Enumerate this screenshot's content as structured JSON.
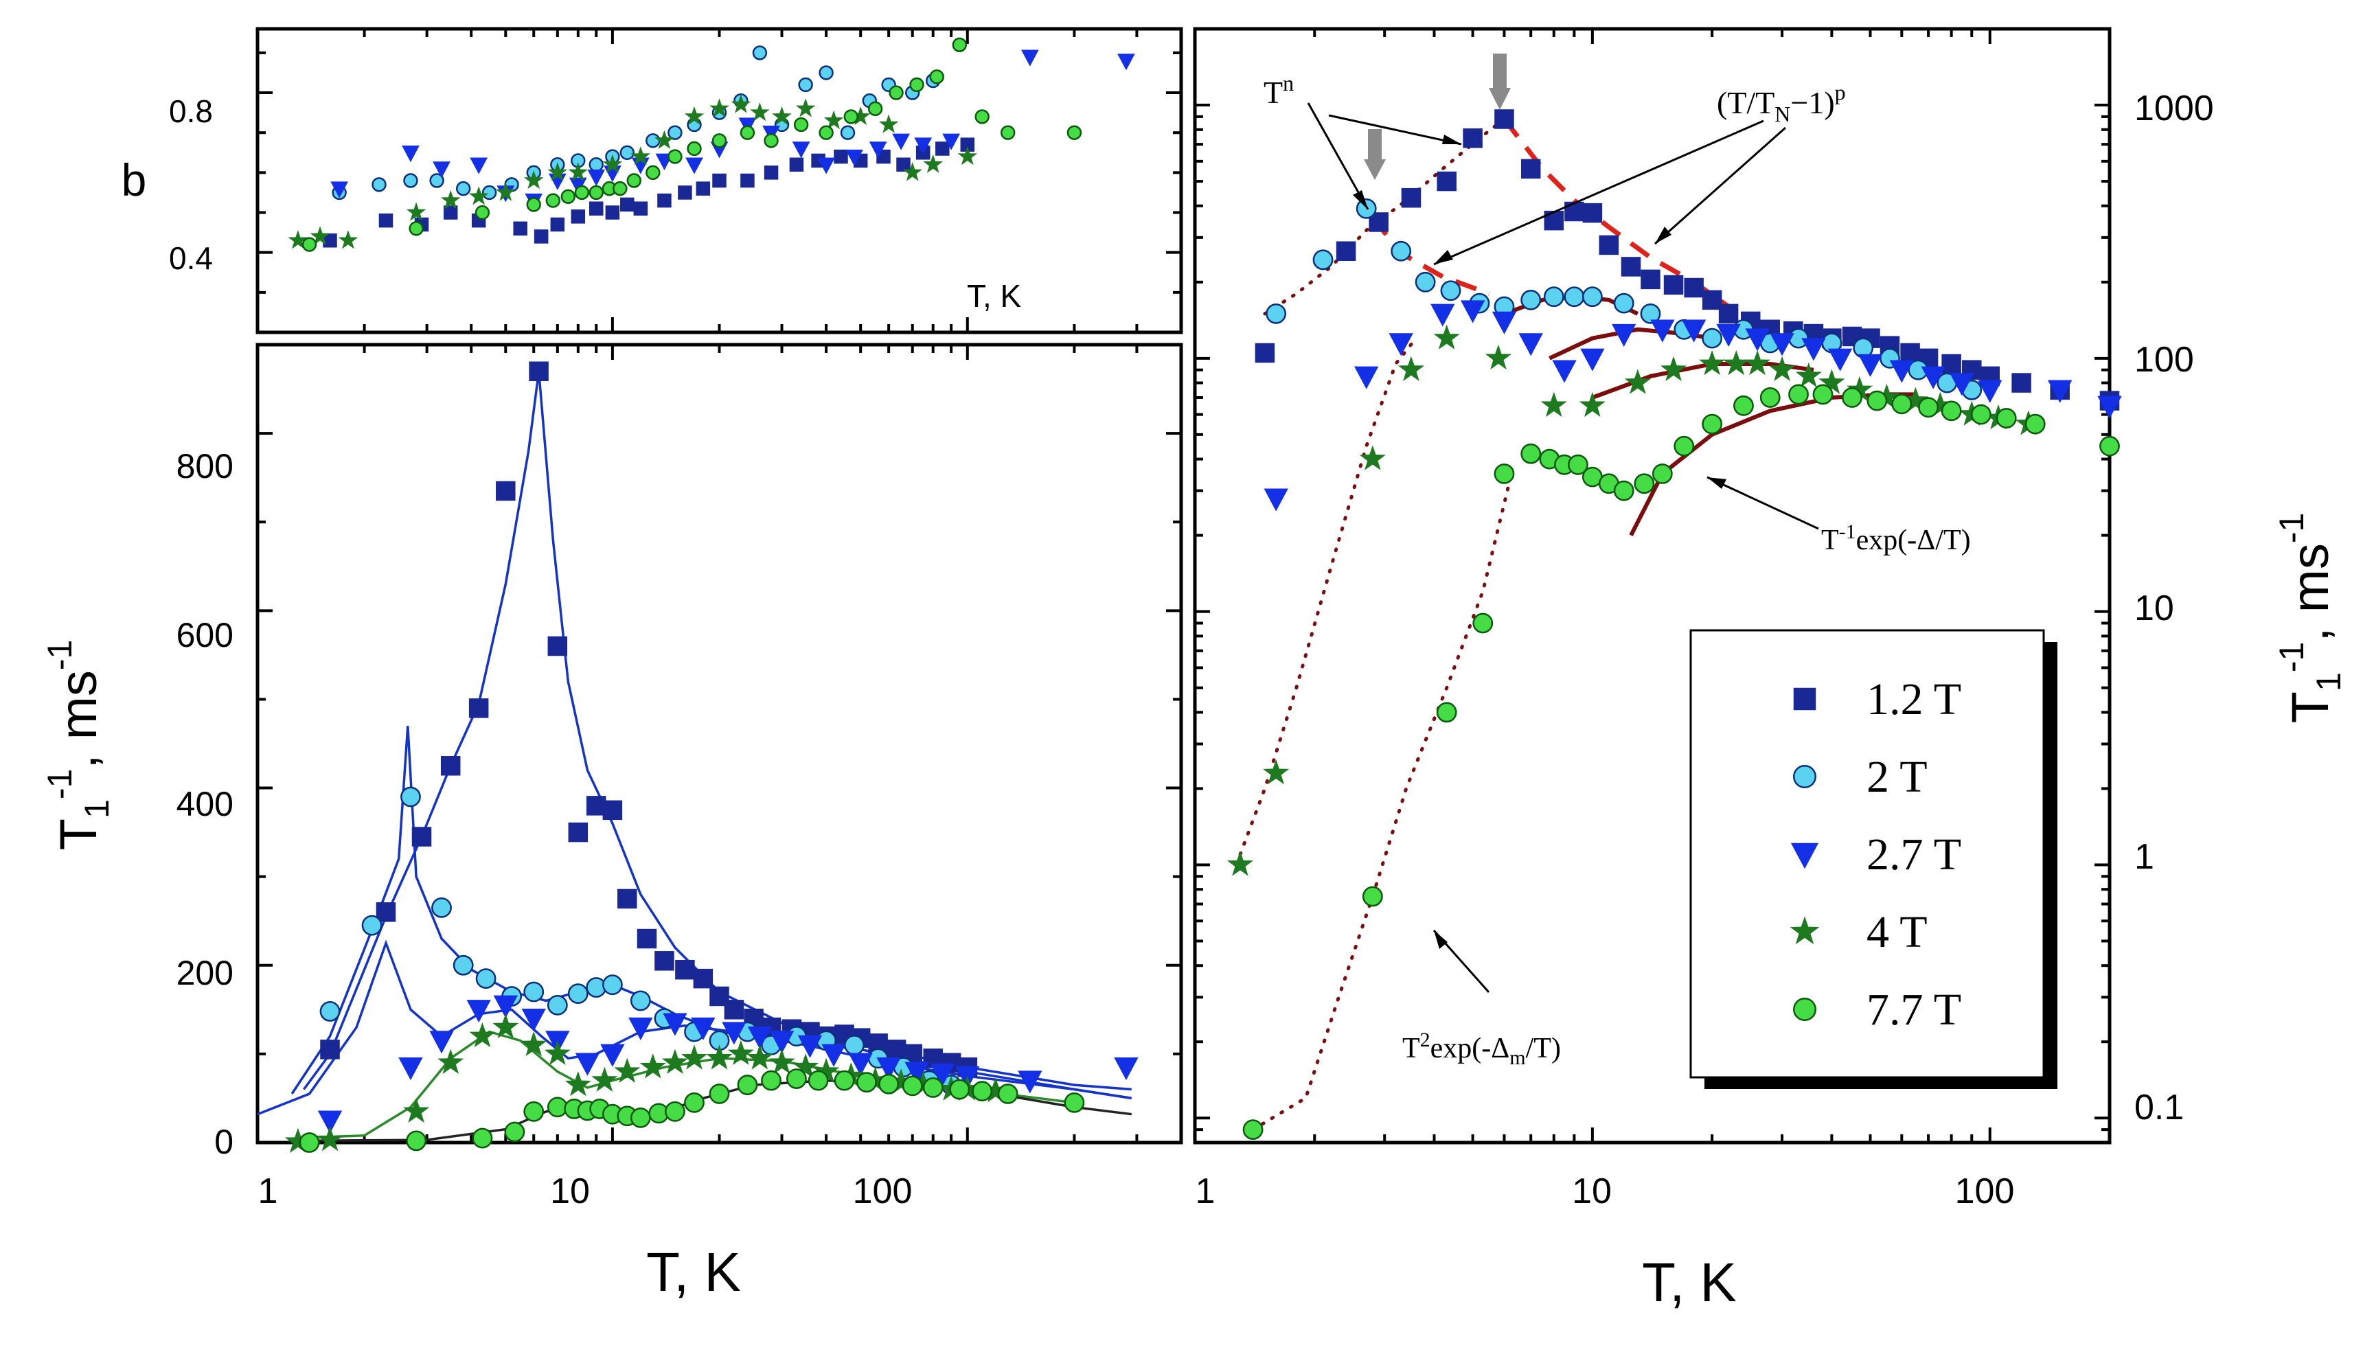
{
  "chart_data": [
    {
      "id": "b_panel",
      "type": "scatter",
      "xscale": "log",
      "xlim": [
        1,
        400
      ],
      "ylim": [
        0.2,
        0.96
      ],
      "ylabel": "b",
      "inner_xlabel": "T, K",
      "yticks": [
        "0.4",
        "0.8"
      ],
      "series": [
        {
          "name": "1.2 T",
          "marker": "square",
          "x": [
            1.6,
            2.3,
            2.9,
            3.5,
            4.2,
            5.5,
            6.3,
            7,
            8,
            9,
            10,
            11,
            12,
            14,
            16,
            18,
            20,
            24,
            28,
            33,
            38,
            44,
            50,
            58,
            66,
            75,
            85,
            100
          ],
          "y": [
            0.43,
            0.48,
            0.47,
            0.5,
            0.48,
            0.46,
            0.44,
            0.47,
            0.49,
            0.51,
            0.5,
            0.52,
            0.51,
            0.53,
            0.55,
            0.56,
            0.58,
            0.58,
            0.6,
            0.62,
            0.63,
            0.64,
            0.63,
            0.64,
            0.62,
            0.65,
            0.66,
            0.67
          ]
        },
        {
          "name": "2 T",
          "marker": "circle",
          "x": [
            1.7,
            2.2,
            2.7,
            3.2,
            3.8,
            4.5,
            5.2,
            6,
            7,
            8,
            9,
            10,
            11,
            13,
            15,
            17,
            20,
            23,
            26,
            30,
            35,
            40,
            46,
            53,
            60,
            70,
            80
          ],
          "y": [
            0.55,
            0.57,
            0.58,
            0.58,
            0.56,
            0.55,
            0.57,
            0.6,
            0.62,
            0.63,
            0.62,
            0.64,
            0.65,
            0.68,
            0.7,
            0.72,
            0.75,
            0.78,
            0.9,
            0.72,
            0.82,
            0.85,
            0.7,
            0.78,
            0.82,
            0.8,
            0.83
          ]
        },
        {
          "name": "2.7 T",
          "marker": "triangle-down",
          "x": [
            1.7,
            2.7,
            3.3,
            4.2,
            5,
            6,
            7,
            8,
            9,
            10,
            12,
            14,
            17,
            20,
            24,
            28,
            34,
            40,
            48,
            56,
            65,
            75,
            90,
            150,
            280
          ],
          "y": [
            0.56,
            0.65,
            0.61,
            0.62,
            0.55,
            0.53,
            0.58,
            0.57,
            0.59,
            0.6,
            0.62,
            0.63,
            0.62,
            0.66,
            0.72,
            0.7,
            0.66,
            0.62,
            0.64,
            0.66,
            0.68,
            0.67,
            0.68,
            0.89,
            0.88
          ]
        },
        {
          "name": "4 T",
          "marker": "star",
          "x": [
            1.3,
            1.5,
            1.8,
            2.8,
            3.5,
            4.2,
            5,
            6,
            7,
            8,
            10,
            12,
            14,
            17,
            20,
            23,
            26,
            30,
            35,
            42,
            50,
            60,
            70,
            80,
            100
          ],
          "y": [
            0.43,
            0.44,
            0.43,
            0.5,
            0.53,
            0.54,
            0.55,
            0.58,
            0.6,
            0.6,
            0.62,
            0.64,
            0.68,
            0.74,
            0.76,
            0.77,
            0.75,
            0.74,
            0.76,
            0.73,
            0.74,
            0.72,
            0.6,
            0.62,
            0.64
          ]
        },
        {
          "name": "7.7 T",
          "marker": "circle",
          "x": [
            1.4,
            2.8,
            4.3,
            6,
            6.8,
            7.5,
            8.2,
            9,
            9.8,
            10.5,
            11.5,
            13,
            15,
            17,
            20,
            24,
            28,
            34,
            40,
            47,
            55,
            63,
            72,
            82,
            95,
            110,
            130,
            200
          ],
          "y": [
            0.42,
            0.46,
            0.5,
            0.52,
            0.53,
            0.54,
            0.55,
            0.55,
            0.56,
            0.56,
            0.58,
            0.6,
            0.64,
            0.66,
            0.68,
            0.7,
            0.68,
            0.72,
            0.7,
            0.74,
            0.76,
            0.8,
            0.82,
            0.84,
            0.92,
            0.74,
            0.7,
            0.7
          ]
        }
      ]
    },
    {
      "id": "linear_panel",
      "type": "scatter",
      "xscale": "log",
      "xlim": [
        1,
        400
      ],
      "ylim": [
        0,
        900
      ],
      "xlabel": "T, K",
      "ylabel": "T1-1, ms-1",
      "xticks": [
        "1",
        "10",
        "100"
      ],
      "yticks": [
        "0",
        "200",
        "400",
        "600",
        "800"
      ],
      "series": [
        {
          "name": "1.2 T",
          "marker": "square",
          "x": [
            1.6,
            2.3,
            2.9,
            3.5,
            4.2,
            5,
            6.2,
            7,
            8,
            9,
            10,
            11,
            12.5,
            14,
            16,
            18,
            20,
            22,
            25,
            28,
            32,
            36,
            40,
            45,
            50,
            56,
            63,
            70,
            80,
            90,
            100
          ],
          "y": [
            105,
            260,
            345,
            425,
            490,
            735,
            870,
            560,
            350,
            380,
            375,
            275,
            230,
            205,
            195,
            185,
            165,
            150,
            140,
            130,
            128,
            125,
            120,
            122,
            118,
            112,
            105,
            100,
            95,
            90,
            85
          ]
        },
        {
          "name": "2 T",
          "marker": "circle",
          "x": [
            1.6,
            2.1,
            2.7,
            3.3,
            3.8,
            4.4,
            5.2,
            6,
            7,
            8,
            9,
            10,
            12,
            14,
            17,
            20,
            24,
            28,
            33,
            40,
            48,
            56,
            66,
            78,
            90
          ],
          "y": [
            148,
            245,
            390,
            265,
            200,
            185,
            165,
            170,
            155,
            168,
            175,
            178,
            160,
            140,
            125,
            115,
            125,
            110,
            120,
            115,
            110,
            95,
            85,
            70,
            65
          ]
        },
        {
          "name": "2.7 T",
          "marker": "triangle-down",
          "x": [
            1.6,
            2.7,
            3.3,
            4.2,
            5,
            6,
            7,
            8.5,
            10,
            12,
            15,
            18,
            22,
            26,
            30,
            36,
            42,
            50,
            60,
            72,
            85,
            100,
            150,
            280
          ],
          "y": [
            25,
            85,
            115,
            150,
            155,
            140,
            115,
            90,
            100,
            130,
            135,
            130,
            125,
            120,
            115,
            110,
            100,
            90,
            85,
            80,
            78,
            75,
            70,
            85
          ]
        },
        {
          "name": "4 T",
          "marker": "star",
          "x": [
            1.3,
            1.6,
            2.8,
            3.5,
            4.3,
            5,
            6,
            7,
            8,
            9.5,
            11,
            13,
            15,
            17,
            20,
            23,
            26,
            30,
            35,
            40,
            47,
            55,
            65,
            75,
            90,
            100,
            120
          ],
          "y": [
            1,
            3,
            35,
            90,
            120,
            130,
            110,
            100,
            65,
            70,
            80,
            85,
            90,
            95,
            95,
            100,
            95,
            90,
            85,
            80,
            75,
            70,
            68,
            65,
            60,
            60,
            58
          ]
        },
        {
          "name": "7.7 T",
          "marker": "circle",
          "x": [
            1.4,
            2.8,
            4.3,
            5.3,
            6,
            7,
            7.8,
            8.5,
            9.2,
            10,
            11,
            12,
            13.5,
            15,
            17,
            20,
            24,
            28,
            33,
            38,
            45,
            52,
            60,
            70,
            80,
            95,
            110,
            130,
            200
          ],
          "y": [
            0,
            2,
            5,
            12,
            35,
            40,
            38,
            36,
            38,
            32,
            30,
            28,
            33,
            35,
            45,
            55,
            65,
            70,
            72,
            70,
            70,
            68,
            66,
            64,
            62,
            60,
            58,
            55,
            45
          ]
        }
      ]
    },
    {
      "id": "log_panel",
      "type": "scatter",
      "xscale": "log",
      "yscale": "log",
      "xlim": [
        1,
        200
      ],
      "ylim": [
        0.08,
        2000
      ],
      "xlabel": "T, K",
      "ylabel": "T1-1, ms-1",
      "xticks": [
        "1",
        "10",
        "100"
      ],
      "yticks": [
        "0.1",
        "1",
        "10",
        "100",
        "1000"
      ],
      "legend": {
        "position": "lower-right",
        "entries": [
          "1.2 T",
          "2 T",
          "2.7 T",
          "4 T",
          "7.7 T"
        ]
      },
      "annotations": [
        "T^n",
        "(T/T_N-1)^p",
        "T^-1 exp(-Δ/T)",
        "T^2 exp(-Δ_m/T)"
      ],
      "series": [
        {
          "name": "1.2 T",
          "marker": "square",
          "x": [
            1.5,
            2.4,
            2.9,
            3.5,
            4.3,
            5,
            6,
            7,
            8,
            9,
            10,
            11,
            12.5,
            14,
            16,
            18,
            20,
            22,
            25,
            28,
            32,
            36,
            40,
            45,
            50,
            56,
            63,
            70,
            80,
            90,
            100,
            120,
            150,
            200
          ],
          "y": [
            105,
            265,
            345,
            430,
            500,
            740,
            880,
            560,
            350,
            380,
            375,
            280,
            230,
            205,
            195,
            190,
            170,
            150,
            140,
            130,
            128,
            125,
            120,
            122,
            120,
            112,
            105,
            100,
            95,
            90,
            85,
            80,
            75,
            68
          ]
        },
        {
          "name": "2 T",
          "marker": "circle",
          "x": [
            1.6,
            2.1,
            2.7,
            3.3,
            3.8,
            4.4,
            5.2,
            6,
            7,
            8,
            9,
            10,
            12,
            14,
            17,
            20,
            24,
            28,
            33,
            40,
            48,
            56,
            66,
            78,
            90
          ],
          "y": [
            150,
            245,
            390,
            265,
            200,
            185,
            165,
            160,
            170,
            175,
            175,
            175,
            165,
            150,
            130,
            120,
            130,
            115,
            120,
            115,
            110,
            100,
            90,
            80,
            75
          ]
        },
        {
          "name": "2.7 T",
          "marker": "triangle-down",
          "x": [
            1.6,
            2.7,
            3.3,
            4.2,
            5,
            6,
            7,
            8.5,
            10,
            12,
            15,
            18,
            22,
            26,
            30,
            36,
            42,
            50,
            60,
            72,
            85,
            100,
            150,
            200
          ],
          "y": [
            28,
            85,
            115,
            150,
            155,
            140,
            115,
            90,
            100,
            125,
            130,
            130,
            125,
            120,
            115,
            110,
            100,
            95,
            90,
            85,
            80,
            75,
            75,
            65
          ]
        },
        {
          "name": "4 T",
          "marker": "star",
          "x": [
            1.3,
            1.6,
            2.8,
            3.5,
            4.3,
            5.8,
            8,
            10,
            13,
            16,
            20,
            23,
            26,
            30,
            35,
            40,
            47,
            55,
            65,
            75,
            90,
            105,
            125
          ],
          "y": [
            1,
            2.3,
            40,
            90,
            120,
            100,
            65,
            65,
            80,
            90,
            95,
            95,
            95,
            90,
            85,
            80,
            75,
            70,
            68,
            65,
            60,
            58,
            55
          ]
        },
        {
          "name": "7.7 T",
          "marker": "circle",
          "x": [
            1.4,
            2.8,
            4.3,
            5.3,
            6,
            7,
            7.8,
            8.5,
            9.2,
            10,
            11,
            12,
            13.5,
            15,
            17,
            20,
            24,
            28,
            33,
            38,
            45,
            52,
            60,
            70,
            80,
            95,
            110,
            130,
            200
          ],
          "y": [
            0.09,
            0.75,
            4,
            9,
            35,
            42,
            40,
            38,
            38,
            34,
            32,
            30,
            32,
            35,
            45,
            55,
            65,
            70,
            72,
            72,
            70,
            68,
            66,
            64,
            62,
            60,
            58,
            55,
            45
          ]
        }
      ]
    }
  ],
  "axis_labels": {
    "b_ylabel": "b",
    "b_inner_xlabel": "T, K",
    "left_xlabel": "T, K",
    "right_xlabel": "T, K",
    "t1_prefix": "T",
    "t1_sub": "1",
    "t1_sup": "-1",
    "t1_unit": ", ms",
    "t1_unit_sup": "-1"
  },
  "tick_labels": {
    "b_y": [
      "0.4",
      "0.8"
    ],
    "left_x": [
      "1",
      "10",
      "100"
    ],
    "left_y": [
      "0",
      "200",
      "400",
      "600",
      "800"
    ],
    "right_x": [
      "1",
      "10",
      "100"
    ],
    "right_y": [
      "0.1",
      "1",
      "10",
      "100",
      "1000"
    ]
  },
  "annotations": {
    "tn_base": "T",
    "tn_sup": "n",
    "tn2_part1": "(T/T",
    "tn2_sub": "N",
    "tn2_part2": "−1)",
    "tn2_sup": "p",
    "gap_base": "T",
    "gap_sup": "-1",
    "gap_rest": "exp(-Δ/T)",
    "mgap_base": "T",
    "mgap_sup": "2",
    "mgap_part1": "exp(-Δ",
    "mgap_sub": "m",
    "mgap_part2": "/T)"
  },
  "colors": {
    "series_1_2T": "#1a2896",
    "series_2T": "#5ad2f0",
    "series_2_7T": "#1430e6",
    "series_4T": "#1e7a1e",
    "series_7_7T": "#46dc46",
    "fit_lines": "#1433c8",
    "fit_red_dashed": "#e0231a",
    "fit_dark_red": "#7a0e0e",
    "arrow_gray": "#8a8a8a"
  }
}
